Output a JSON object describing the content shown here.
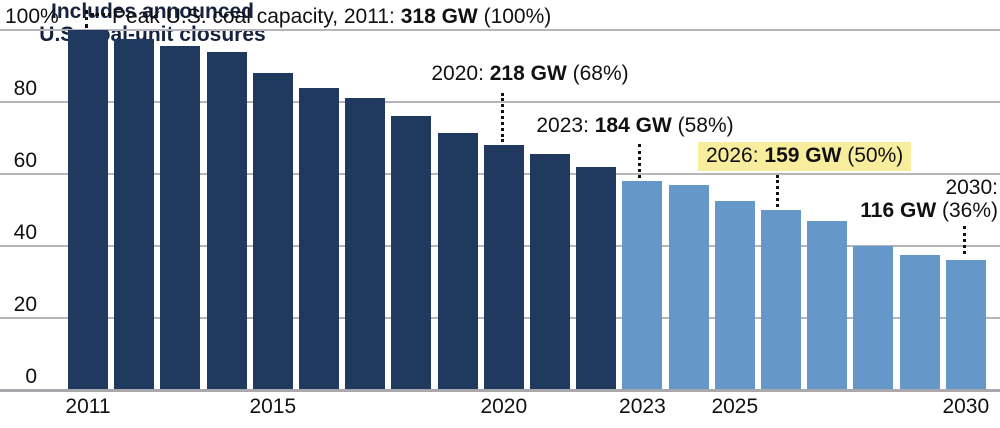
{
  "chart_data": {
    "type": "bar",
    "categories": [
      "2011",
      "2012",
      "2013",
      "2014",
      "2015",
      "2016",
      "2017",
      "2018",
      "2019",
      "2020",
      "2021",
      "2022",
      "2023",
      "2024",
      "2025",
      "2026",
      "2027",
      "2028",
      "2029",
      "2030"
    ],
    "values_pct": [
      100,
      97.5,
      95.5,
      94,
      88,
      84,
      81,
      76,
      71.5,
      68,
      65.5,
      62,
      58,
      57,
      52.5,
      50,
      47,
      40,
      37.5,
      36
    ],
    "dark_bars_through_index": 11,
    "ylim": [
      0,
      100
    ],
    "grid": "horizontal",
    "colors": {
      "historical_bar": "#1f3a5e",
      "projected_bar": "#6697c9",
      "highlight": "#f8ed9d",
      "gridline": "#b5b5ba",
      "axis_line": "#a8a8ad",
      "note_text": "#16233f"
    },
    "y_ticks": [
      {
        "label": "100%",
        "value": 100
      },
      {
        "label": "80",
        "value": 80
      },
      {
        "label": "60",
        "value": 60
      },
      {
        "label": "40",
        "value": 40
      },
      {
        "label": "20",
        "value": 20
      },
      {
        "label": "0",
        "value": 0
      }
    ],
    "x_ticks": [
      {
        "label": "2011",
        "bar_index": 0
      },
      {
        "label": "2015",
        "bar_index": 4
      },
      {
        "label": "2020",
        "bar_index": 9
      },
      {
        "label": "2023",
        "bar_index": 12
      },
      {
        "label": "2025",
        "bar_index": 14
      },
      {
        "label": "2030",
        "bar_index": 19
      }
    ],
    "annotations": {
      "peak": {
        "pre": "Peak U.S. coal capacity, 2011: ",
        "bold": "318 GW",
        "post": " (100%)"
      },
      "y2020": {
        "pre": "2020: ",
        "bold": "218 GW",
        "post": " (68%)"
      },
      "y2023": {
        "pre": "2023: ",
        "bold": "184 GW",
        "post": " (58%)"
      },
      "y2026": {
        "pre": "2026: ",
        "bold": "159 GW",
        "post": " (50%)"
      },
      "y2030": {
        "line1": "2030:",
        "bold": "116 GW",
        "post": " (36%)"
      },
      "note_line1": "Includes announced",
      "note_line2": "U.S. coal-unit closures"
    }
  }
}
